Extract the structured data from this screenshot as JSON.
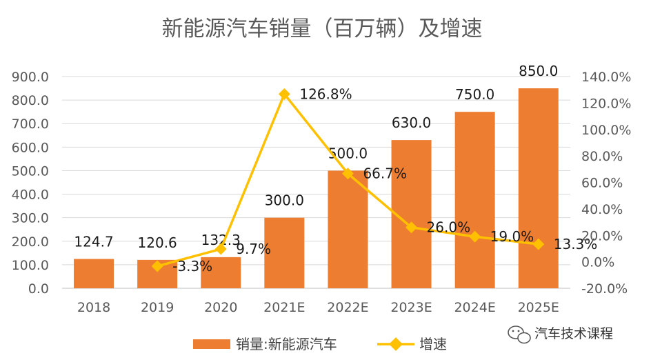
{
  "chart_data": {
    "type": "bar+line",
    "title": "新能源汽车销量（百万辆）及增速",
    "categories": [
      "2018",
      "2019",
      "2020",
      "2021E",
      "2022E",
      "2023E",
      "2024E",
      "2025E"
    ],
    "series": [
      {
        "name": "销量:新能源汽车",
        "type": "bar",
        "axis": "left",
        "color": "#ED7D31",
        "values": [
          124.7,
          120.6,
          132.3,
          300.0,
          500.0,
          630.0,
          750.0,
          850.0
        ],
        "labels": [
          "124.7",
          "120.6",
          "132.3",
          "300.0",
          "500.0",
          "630.0",
          "750.0",
          "850.0"
        ]
      },
      {
        "name": "增速",
        "type": "line",
        "axis": "right",
        "color": "#FFC000",
        "values": [
          null,
          -3.3,
          9.7,
          126.8,
          66.7,
          26.0,
          19.0,
          13.3
        ],
        "labels": [
          null,
          "-3.3%",
          "9.7%",
          "126.8%",
          "66.7%",
          "26.0%",
          "19.0%",
          "13.3%"
        ]
      }
    ],
    "y_left": {
      "min": 0,
      "max": 900,
      "step": 100,
      "ticks": [
        "0.0",
        "100.0",
        "200.0",
        "300.0",
        "400.0",
        "500.0",
        "600.0",
        "700.0",
        "800.0",
        "900.0"
      ]
    },
    "y_right": {
      "min": -20,
      "max": 140,
      "step": 20,
      "ticks": [
        "-20.0%",
        "0.0%",
        "20.0%",
        "40.0%",
        "60.0%",
        "80.0%",
        "100.0%",
        "120.0%",
        "140.0%"
      ]
    },
    "grid": true,
    "legend_position": "bottom-center"
  },
  "watermark": {
    "text": "汽车技术课程",
    "icon": "wechat-icon"
  }
}
